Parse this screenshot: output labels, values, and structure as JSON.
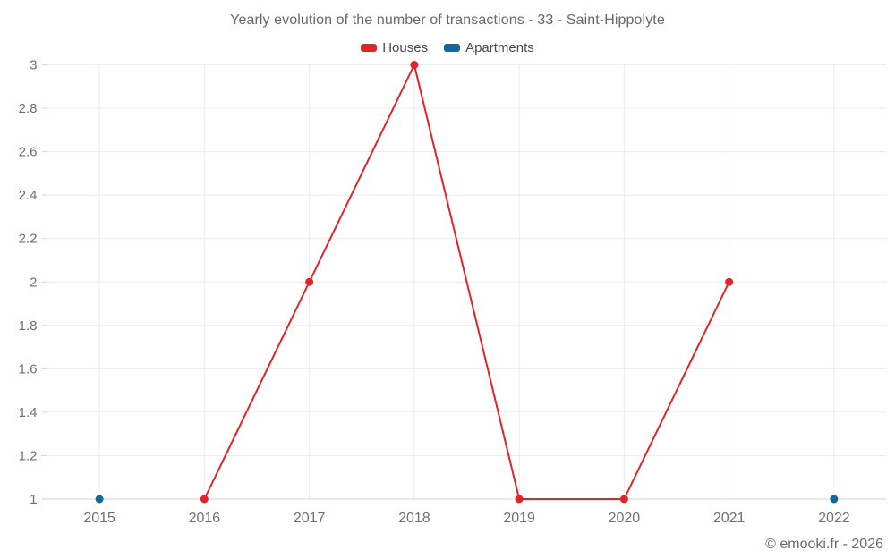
{
  "chart_data": {
    "type": "line",
    "title": "Yearly evolution of the number of transactions - 33 - Saint-Hippolyte",
    "categories": [
      "2015",
      "2016",
      "2017",
      "2018",
      "2019",
      "2020",
      "2021",
      "2022"
    ],
    "series": [
      {
        "name": "Houses",
        "color": "#e02429",
        "values": [
          null,
          1,
          2,
          3,
          1,
          1,
          2,
          null
        ]
      },
      {
        "name": "Apartments",
        "color": "#10689d",
        "values": [
          1,
          null,
          null,
          null,
          null,
          null,
          null,
          1
        ]
      }
    ],
    "xlabel": "",
    "ylabel": "",
    "ylim": [
      1,
      3
    ],
    "ytick_labels": [
      "1",
      "1.2",
      "1.4",
      "1.6",
      "1.8",
      "2",
      "2.2",
      "2.4",
      "2.6",
      "2.8",
      "3"
    ],
    "grid": true,
    "legend_position": "top",
    "marker_style": "circle"
  },
  "style": {
    "gridline": "#ececec",
    "axis": "#d6d6d6",
    "axis_label": "#707070"
  },
  "footer": {
    "copyright": "© emooki.fr - 2026"
  }
}
